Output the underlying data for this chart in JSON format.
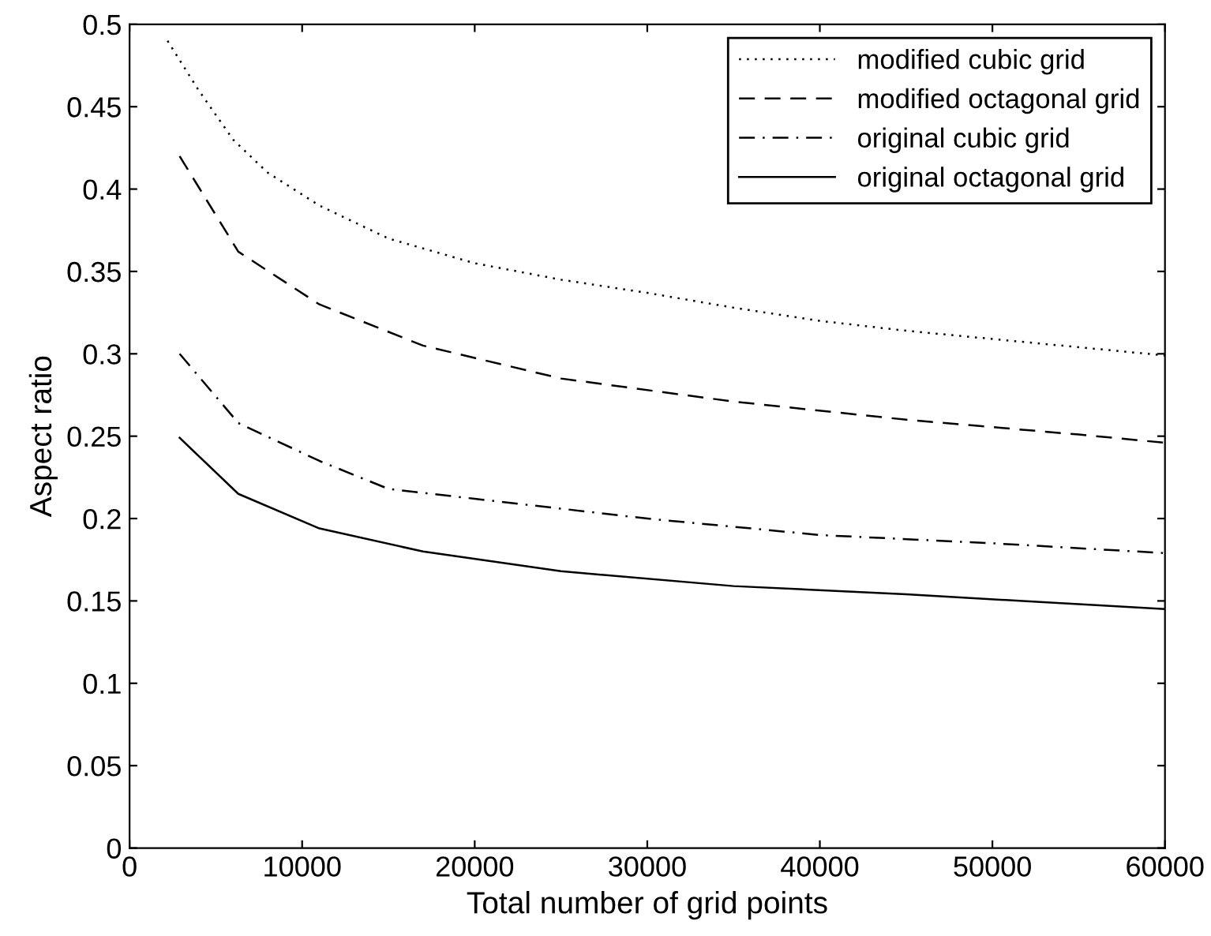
{
  "chart_data": {
    "type": "line",
    "xlabel": "Total number of grid points",
    "ylabel": "Aspect ratio",
    "xlim": [
      0,
      60000
    ],
    "ylim": [
      0,
      0.5
    ],
    "xticks": [
      0,
      10000,
      20000,
      30000,
      40000,
      50000,
      60000
    ],
    "yticks": [
      0,
      0.05,
      0.1,
      0.15,
      0.2,
      0.25,
      0.3,
      0.35,
      0.4,
      0.45,
      0.5
    ],
    "grid": false,
    "legend": "top right",
    "marker": "none",
    "series": [
      {
        "name": "modified cubic grid",
        "color": "#000000",
        "line_style": "dotted",
        "x": [
          2200,
          4000,
          6000,
          8000,
          11000,
          15000,
          20000,
          25000,
          30000,
          35000,
          40000,
          45000,
          50000,
          55000,
          60000
        ],
        "values": [
          0.49,
          0.46,
          0.43,
          0.41,
          0.39,
          0.37,
          0.355,
          0.345,
          0.337,
          0.328,
          0.32,
          0.314,
          0.309,
          0.304,
          0.299
        ]
      },
      {
        "name": "modified octagonal grid",
        "color": "#000000",
        "line_style": "dashed",
        "x": [
          2900,
          6300,
          11000,
          17000,
          25000,
          35000,
          45000,
          55000,
          60000
        ],
        "values": [
          0.42,
          0.362,
          0.33,
          0.305,
          0.285,
          0.271,
          0.26,
          0.251,
          0.246
        ]
      },
      {
        "name": "original cubic grid",
        "color": "#000000",
        "line_style": "dashdot",
        "x": [
          2900,
          6300,
          11000,
          15000,
          20000,
          25000,
          30000,
          40000,
          50000,
          60000
        ],
        "values": [
          0.3,
          0.258,
          0.235,
          0.218,
          0.212,
          0.206,
          0.2,
          0.19,
          0.185,
          0.179
        ]
      },
      {
        "name": "original octagonal grid",
        "color": "#000000",
        "line_style": "solid",
        "x": [
          2900,
          6300,
          11000,
          17000,
          25000,
          35000,
          45000,
          55000,
          60000
        ],
        "values": [
          0.249,
          0.215,
          0.194,
          0.18,
          0.168,
          0.159,
          0.154,
          0.148,
          0.145
        ]
      }
    ]
  }
}
